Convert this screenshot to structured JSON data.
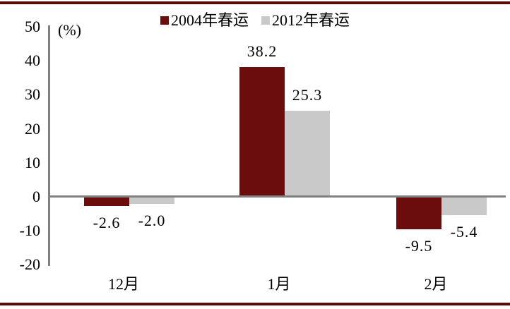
{
  "chart_data": {
    "type": "bar",
    "title": "",
    "unit_label": "(%)",
    "categories": [
      "12月",
      "1月",
      "2月"
    ],
    "series": [
      {
        "name": "2004年春运",
        "color": "#6B0D0D",
        "values": [
          -2.6,
          38.2,
          -9.5
        ],
        "labels": [
          "-2.6",
          "38.2",
          "-9.5"
        ]
      },
      {
        "name": "2012年春运",
        "color": "#C9C9C9",
        "values": [
          -2.0,
          25.3,
          -5.4
        ],
        "labels": [
          "-2.0",
          "25.3",
          "-5.4"
        ]
      }
    ],
    "y_ticks": [
      "50",
      "40",
      "30",
      "20",
      "10",
      "0",
      "-10",
      "-20"
    ],
    "ylim": [
      -20,
      50
    ],
    "xlabel": "",
    "ylabel": "(%)",
    "grid": false,
    "legend_position": "top-center"
  },
  "style": {
    "frame_color": "#5A0B0B",
    "axis_color": "#808080",
    "text_color": "#000000",
    "background": "#FFFFFF"
  }
}
